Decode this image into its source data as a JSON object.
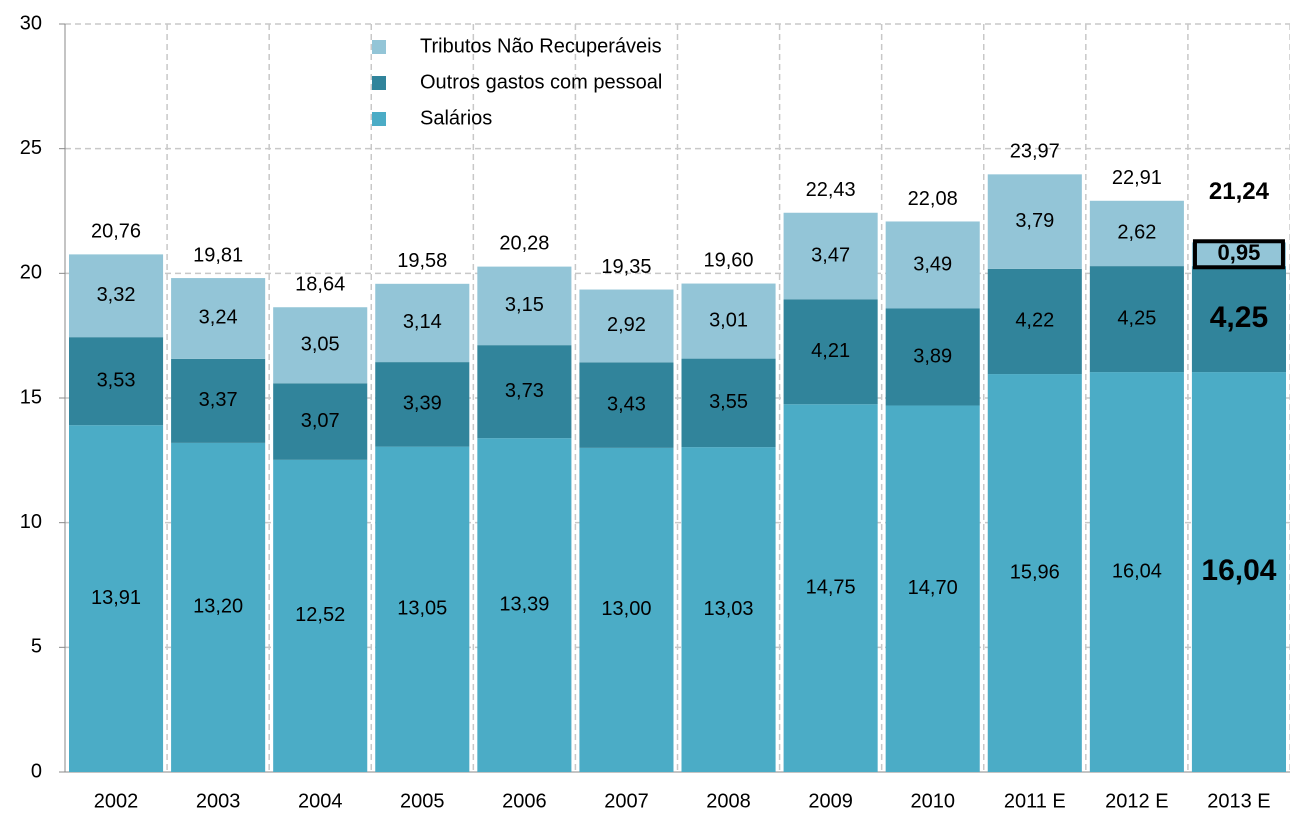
{
  "chart_data": {
    "type": "stacked_bar",
    "categories": [
      "2002",
      "2003",
      "2004",
      "2005",
      "2006",
      "2007",
      "2008",
      "2009",
      "2010",
      "2011 E",
      "2012 E",
      "2013 E"
    ],
    "series": [
      {
        "name": "Salários",
        "color": "#4bacc6",
        "values": [
          13.91,
          13.2,
          12.52,
          13.05,
          13.39,
          13.0,
          13.03,
          14.75,
          14.7,
          15.96,
          16.04,
          16.04
        ],
        "value_labels": [
          "13,91",
          "13,20",
          "12,52",
          "13,05",
          "13,39",
          "13,00",
          "13,03",
          "14,75",
          "14,70",
          "15,96",
          "16,04",
          "16,04"
        ]
      },
      {
        "name": "Outros gastos com pessoal",
        "color": "#31849b",
        "values": [
          3.53,
          3.37,
          3.07,
          3.39,
          3.73,
          3.43,
          3.55,
          4.21,
          3.89,
          4.22,
          4.25,
          4.25
        ],
        "value_labels": [
          "3,53",
          "3,37",
          "3,07",
          "3,39",
          "3,73",
          "3,43",
          "3,55",
          "4,21",
          "3,89",
          "4,22",
          "4,25",
          "4,25"
        ]
      },
      {
        "name": "Tributos Não Recuperáveis",
        "color": "#93c5d7",
        "values": [
          3.32,
          3.24,
          3.05,
          3.14,
          3.15,
          2.92,
          3.01,
          3.47,
          3.49,
          3.79,
          2.62,
          0.95
        ],
        "value_labels": [
          "3,32",
          "3,24",
          "3,05",
          "3,14",
          "3,15",
          "2,92",
          "3,01",
          "3,47",
          "3,49",
          "3,79",
          "2,62",
          "0,95"
        ]
      }
    ],
    "totals": {
      "values": [
        20.76,
        19.81,
        18.64,
        19.58,
        20.28,
        19.35,
        19.6,
        22.43,
        22.08,
        23.97,
        22.91,
        21.24
      ],
      "value_labels": [
        "20,76",
        "19,81",
        "18,64",
        "19,58",
        "20,28",
        "19,35",
        "19,60",
        "22,43",
        "22,08",
        "23,97",
        "22,91",
        "21,24"
      ]
    },
    "ylim": [
      0,
      30
    ],
    "yticks": [
      0,
      5,
      10,
      15,
      20,
      25,
      30
    ],
    "grid": true,
    "legend": "top"
  }
}
